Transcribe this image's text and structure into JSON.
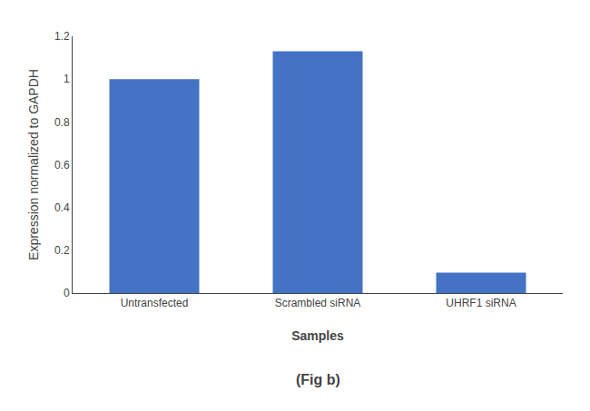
{
  "chart_data": {
    "type": "bar",
    "categories": [
      "Untransfected",
      "Scrambled siRNA",
      "UHRF1 siRNA"
    ],
    "values": [
      1.0,
      1.13,
      0.095
    ],
    "color": "#4472c4",
    "xlabel": "Samples",
    "ylabel": "Expression normalized to GAPDH",
    "ylim": [
      0,
      1.2
    ],
    "yticks": [
      0,
      0.2,
      0.4,
      0.6,
      0.8,
      1,
      1.2
    ],
    "grid": false,
    "annotations": [
      {
        "text": "(Fig b)"
      }
    ]
  }
}
